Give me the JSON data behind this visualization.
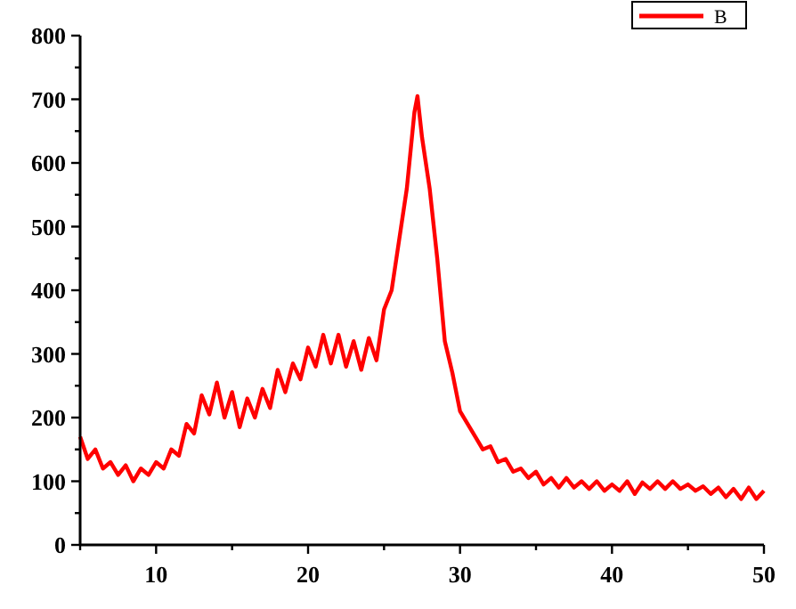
{
  "chart_data": {
    "type": "line",
    "xlim": [
      5,
      50
    ],
    "ylim": [
      0,
      800
    ],
    "xticks": [
      {
        "value": 5,
        "label": null
      },
      10,
      {
        "value": 15,
        "label": null
      },
      20,
      {
        "value": 25,
        "label": null
      },
      30,
      {
        "value": 35,
        "label": null
      },
      40,
      {
        "value": 45,
        "label": null
      },
      50
    ],
    "yticks": [
      0,
      {
        "value": 50,
        "label": null
      },
      100,
      {
        "value": 150,
        "label": null
      },
      200,
      {
        "value": 250,
        "label": null
      },
      300,
      {
        "value": 350,
        "label": null
      },
      400,
      {
        "value": 450,
        "label": null
      },
      500,
      {
        "value": 550,
        "label": null
      },
      600,
      {
        "value": 650,
        "label": null
      },
      700,
      {
        "value": 750,
        "label": null
      },
      800
    ],
    "legend": "top right",
    "grid": false,
    "marker": "none",
    "line_style": "solid",
    "series": [
      {
        "name": "B",
        "color": "#ff0000",
        "x": [
          5,
          5.5,
          6,
          6.5,
          7,
          7.5,
          8,
          8.5,
          9,
          9.5,
          10,
          10.5,
          11,
          11.5,
          12,
          12.5,
          13,
          13.5,
          14,
          14.5,
          15,
          15.5,
          16,
          16.5,
          17,
          17.5,
          18,
          18.5,
          19,
          19.5,
          20,
          20.5,
          21,
          21.5,
          22,
          22.5,
          23,
          23.5,
          24,
          24.5,
          25,
          25.5,
          26,
          26.5,
          27,
          27.2,
          27.5,
          28,
          28.5,
          29,
          29.5,
          30,
          30.5,
          31,
          31.5,
          32,
          32.5,
          33,
          33.5,
          34,
          34.5,
          35,
          35.5,
          36,
          36.5,
          37,
          37.5,
          38,
          38.5,
          39,
          39.5,
          40,
          40.5,
          41,
          41.5,
          42,
          42.5,
          43,
          43.5,
          44,
          44.5,
          45,
          45.5,
          46,
          46.5,
          47,
          47.5,
          48,
          48.5,
          49,
          49.5,
          50
        ],
        "values": [
          170,
          135,
          150,
          120,
          130,
          110,
          125,
          100,
          120,
          110,
          130,
          120,
          150,
          140,
          190,
          175,
          235,
          205,
          255,
          200,
          240,
          185,
          230,
          200,
          245,
          215,
          275,
          240,
          285,
          260,
          310,
          280,
          330,
          285,
          330,
          280,
          320,
          275,
          325,
          290,
          370,
          400,
          480,
          560,
          680,
          705,
          640,
          560,
          450,
          320,
          270,
          210,
          190,
          170,
          150,
          155,
          130,
          135,
          115,
          120,
          105,
          115,
          95,
          105,
          90,
          105,
          90,
          100,
          88,
          100,
          85,
          95,
          85,
          100,
          80,
          98,
          88,
          100,
          88,
          100,
          88,
          95,
          85,
          92,
          80,
          90,
          75,
          88,
          72,
          90,
          72,
          85
        ]
      }
    ]
  }
}
